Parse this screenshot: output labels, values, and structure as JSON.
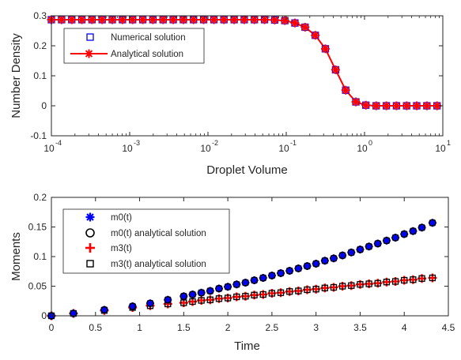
{
  "chart_data": [
    {
      "type": "scatter",
      "xlabel": "Droplet Volume",
      "ylabel": "Number Density",
      "xscale": "log",
      "xlim": [
        0.0001,
        10
      ],
      "ylim": [
        -0.1,
        0.3
      ],
      "xtick_labels": [
        "10",
        "10",
        "10",
        "10",
        "10",
        "10"
      ],
      "xtick_exponents": [
        "-4",
        "-3",
        "-2",
        "-1",
        "0",
        "1"
      ],
      "xtick_values": [
        0.0001,
        0.001,
        0.01,
        0.1,
        1,
        10
      ],
      "ytick_labels": [
        "-0.1",
        "0",
        "0.1",
        "0.2",
        "0.3"
      ],
      "ytick_values": [
        -0.1,
        0,
        0.1,
        0.2,
        0.3
      ],
      "legend_position": "top-left",
      "grid": false,
      "series": [
        {
          "name": "Numerical solution",
          "marker": "square",
          "color": "#0000ff",
          "x": [
            0.0001,
            0.000135,
            0.000182,
            0.000245,
            0.00033,
            0.000445,
            0.0006,
            0.000808,
            0.00109,
            0.00147,
            0.00198,
            0.00267,
            0.0036,
            0.00485,
            0.00654,
            0.00881,
            0.0119,
            0.016,
            0.0216,
            0.0291,
            0.0392,
            0.0528,
            0.0712,
            0.0959,
            0.129,
            0.174,
            0.235,
            0.316,
            0.427,
            0.575,
            0.775,
            1.04,
            1.41,
            1.9,
            2.56,
            3.45,
            4.64,
            6.26,
            8.43
          ],
          "y": [
            0.287,
            0.287,
            0.287,
            0.287,
            0.287,
            0.287,
            0.287,
            0.287,
            0.287,
            0.287,
            0.287,
            0.287,
            0.287,
            0.287,
            0.287,
            0.287,
            0.287,
            0.287,
            0.287,
            0.287,
            0.287,
            0.287,
            0.286,
            0.284,
            0.276,
            0.262,
            0.235,
            0.19,
            0.12,
            0.052,
            0.013,
            0.002,
            0.0,
            0.0,
            0.0,
            0.0,
            0.0,
            0.0,
            0.0
          ]
        },
        {
          "name": "Analytical solution",
          "marker": "asterisk-line",
          "color": "#ff0000",
          "x": [
            0.0001,
            0.000135,
            0.000182,
            0.000245,
            0.00033,
            0.000445,
            0.0006,
            0.000808,
            0.00109,
            0.00147,
            0.00198,
            0.00267,
            0.0036,
            0.00485,
            0.00654,
            0.00881,
            0.0119,
            0.016,
            0.0216,
            0.0291,
            0.0392,
            0.0528,
            0.0712,
            0.0959,
            0.129,
            0.174,
            0.235,
            0.316,
            0.427,
            0.575,
            0.775,
            1.04,
            1.41,
            1.9,
            2.56,
            3.45,
            4.64,
            6.26,
            8.43
          ],
          "y": [
            0.287,
            0.287,
            0.287,
            0.287,
            0.287,
            0.287,
            0.287,
            0.287,
            0.287,
            0.287,
            0.287,
            0.287,
            0.287,
            0.287,
            0.287,
            0.287,
            0.287,
            0.287,
            0.287,
            0.287,
            0.287,
            0.287,
            0.286,
            0.284,
            0.276,
            0.262,
            0.235,
            0.19,
            0.12,
            0.052,
            0.013,
            0.002,
            0.0,
            0.0,
            0.0,
            0.0,
            0.0,
            0.0,
            0.0
          ]
        }
      ]
    },
    {
      "type": "scatter",
      "xlabel": "Time",
      "ylabel": "Moments",
      "xlim": [
        0,
        4.5
      ],
      "ylim": [
        0,
        0.2
      ],
      "xtick_labels": [
        "0",
        "0.5",
        "1",
        "1.5",
        "2",
        "2.5",
        "3",
        "3.5",
        "4",
        "4.5"
      ],
      "xtick_values": [
        0,
        0.5,
        1,
        1.5,
        2,
        2.5,
        3,
        3.5,
        4,
        4.5
      ],
      "ytick_labels": [
        "0",
        "0.05",
        "0.1",
        "0.15",
        "0.2"
      ],
      "ytick_values": [
        0,
        0.05,
        0.1,
        0.15,
        0.2
      ],
      "legend_position": "top-left",
      "grid": false,
      "series": [
        {
          "name": "m0(t)",
          "marker": "asterisk",
          "color": "#0000ff",
          "x": [
            0.0,
            0.25,
            0.6,
            0.92,
            1.12,
            1.32,
            1.5,
            1.6,
            1.7,
            1.8,
            1.9,
            2.0,
            2.1,
            2.2,
            2.3,
            2.4,
            2.5,
            2.6,
            2.7,
            2.8,
            2.9,
            3.0,
            3.1,
            3.2,
            3.3,
            3.4,
            3.5,
            3.6,
            3.7,
            3.8,
            3.9,
            4.0,
            4.1,
            4.2,
            4.32
          ],
          "y": [
            0.0,
            0.004,
            0.01,
            0.016,
            0.021,
            0.027,
            0.033,
            0.036,
            0.039,
            0.042,
            0.046,
            0.049,
            0.053,
            0.056,
            0.06,
            0.064,
            0.068,
            0.072,
            0.076,
            0.08,
            0.084,
            0.088,
            0.093,
            0.097,
            0.102,
            0.107,
            0.112,
            0.117,
            0.122,
            0.127,
            0.132,
            0.138,
            0.143,
            0.149,
            0.157
          ]
        },
        {
          "name": "m0(t) analytical solution",
          "marker": "circle",
          "color": "#000000",
          "x": [
            0.0,
            0.25,
            0.6,
            0.92,
            1.12,
            1.32,
            1.5,
            1.6,
            1.7,
            1.8,
            1.9,
            2.0,
            2.1,
            2.2,
            2.3,
            2.4,
            2.5,
            2.6,
            2.7,
            2.8,
            2.9,
            3.0,
            3.1,
            3.2,
            3.3,
            3.4,
            3.5,
            3.6,
            3.7,
            3.8,
            3.9,
            4.0,
            4.1,
            4.2,
            4.32
          ],
          "y": [
            0.0,
            0.004,
            0.01,
            0.016,
            0.021,
            0.027,
            0.033,
            0.036,
            0.039,
            0.042,
            0.046,
            0.049,
            0.053,
            0.056,
            0.06,
            0.064,
            0.068,
            0.072,
            0.076,
            0.08,
            0.084,
            0.088,
            0.093,
            0.097,
            0.102,
            0.107,
            0.112,
            0.117,
            0.122,
            0.127,
            0.132,
            0.138,
            0.143,
            0.149,
            0.157
          ]
        },
        {
          "name": "m3(t)",
          "marker": "plus",
          "color": "#ff0000",
          "x": [
            0.0,
            0.25,
            0.6,
            0.92,
            1.12,
            1.32,
            1.5,
            1.6,
            1.7,
            1.8,
            1.9,
            2.0,
            2.1,
            2.2,
            2.3,
            2.4,
            2.5,
            2.6,
            2.7,
            2.8,
            2.9,
            3.0,
            3.1,
            3.2,
            3.3,
            3.4,
            3.5,
            3.6,
            3.7,
            3.8,
            3.9,
            4.0,
            4.1,
            4.2,
            4.32
          ],
          "y": [
            0.0,
            0.004,
            0.009,
            0.014,
            0.017,
            0.02,
            0.022,
            0.024,
            0.026,
            0.027,
            0.029,
            0.03,
            0.032,
            0.033,
            0.035,
            0.036,
            0.038,
            0.039,
            0.041,
            0.042,
            0.044,
            0.045,
            0.047,
            0.048,
            0.05,
            0.051,
            0.053,
            0.054,
            0.055,
            0.057,
            0.058,
            0.06,
            0.061,
            0.063,
            0.064
          ]
        },
        {
          "name": "m3(t) analytical solution",
          "marker": "square",
          "color": "#000000",
          "x": [
            0.0,
            0.25,
            0.6,
            0.92,
            1.12,
            1.32,
            1.5,
            1.6,
            1.7,
            1.8,
            1.9,
            2.0,
            2.1,
            2.2,
            2.3,
            2.4,
            2.5,
            2.6,
            2.7,
            2.8,
            2.9,
            3.0,
            3.1,
            3.2,
            3.3,
            3.4,
            3.5,
            3.6,
            3.7,
            3.8,
            3.9,
            4.0,
            4.1,
            4.2,
            4.32
          ],
          "y": [
            0.0,
            0.004,
            0.009,
            0.014,
            0.017,
            0.02,
            0.022,
            0.024,
            0.026,
            0.027,
            0.029,
            0.03,
            0.032,
            0.033,
            0.035,
            0.036,
            0.038,
            0.039,
            0.041,
            0.042,
            0.044,
            0.045,
            0.047,
            0.048,
            0.05,
            0.051,
            0.053,
            0.054,
            0.055,
            0.057,
            0.058,
            0.06,
            0.061,
            0.063,
            0.064
          ]
        }
      ]
    }
  ]
}
